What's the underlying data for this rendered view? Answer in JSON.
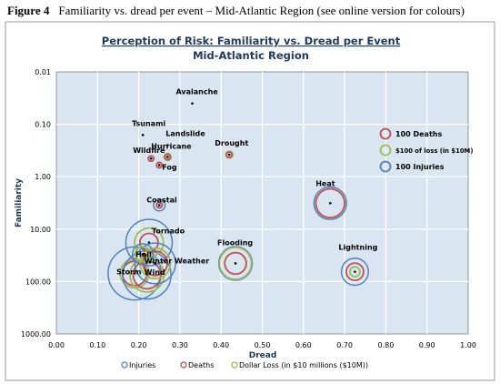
{
  "caption": {
    "figure_label": "Figure 4",
    "text": "Familiarity vs. dread per event – Mid-Atlantic Region (see online version for colours)"
  },
  "chart_data": {
    "type": "scatter",
    "title": "Perception of Risk: Familiarity vs. Dread per Event",
    "subtitle": "Mid-Atlantic Region",
    "xlabel": "Dread",
    "ylabel": "Familiarity",
    "xlim": [
      0,
      1
    ],
    "ylim": [
      0.01,
      1000
    ],
    "y_scale": "log",
    "y_reversed": true,
    "x_ticks": [
      "0.00",
      "0.10",
      "0.20",
      "0.30",
      "0.40",
      "0.50",
      "0.60",
      "0.70",
      "0.80",
      "0.90",
      "1.00"
    ],
    "y_ticks": [
      "0.01",
      "0.10",
      "1.00",
      "10.00",
      "100.00",
      "1000.00"
    ],
    "grid": true,
    "legend_inset": {
      "placement": "right",
      "items": [
        {
          "label": "100 Deaths",
          "color": "#c0504d"
        },
        {
          "label": "$100 of loss (in $10M)",
          "color": "#9bbb59"
        },
        {
          "label": "100 Injuries",
          "color": "#4f81bd"
        }
      ]
    },
    "legend_bottom": {
      "placement": "bottom",
      "items": [
        {
          "label": "Injuries",
          "color": "#4f81bd"
        },
        {
          "label": "Deaths",
          "color": "#c0504d"
        },
        {
          "label": "Dollar Loss (in $10 millions ($10M))",
          "color": "#9bbb59"
        }
      ]
    },
    "colors": {
      "injuries": "#4f81bd",
      "deaths": "#c0504d",
      "loss": "#9bbb59",
      "background": "#d9e6f2"
    },
    "events": [
      {
        "name": "Avalanche",
        "dread": 0.33,
        "familiarity": 0.04,
        "injuries": 0,
        "deaths": 0,
        "loss": 0
      },
      {
        "name": "Tsunami",
        "dread": 0.21,
        "familiarity": 0.16,
        "injuries": 0,
        "deaths": 0,
        "loss": 0
      },
      {
        "name": "Landslide",
        "dread": 0.27,
        "familiarity": 0.25,
        "injuries": 0,
        "deaths": 0,
        "loss": 0
      },
      {
        "name": "Wildfire",
        "dread": 0.23,
        "familiarity": 0.45,
        "injuries": 5,
        "deaths": 2,
        "loss": 2
      },
      {
        "name": "Hurricane",
        "dread": 0.27,
        "familiarity": 0.42,
        "injuries": 6,
        "deaths": 8,
        "loss": 15
      },
      {
        "name": "Drought",
        "dread": 0.42,
        "familiarity": 0.38,
        "injuries": 0,
        "deaths": 8,
        "loss": 15
      },
      {
        "name": "Fog",
        "dread": 0.25,
        "familiarity": 0.6,
        "injuries": 10,
        "deaths": 6,
        "loss": 0
      },
      {
        "name": "Coastal",
        "dread": 0.25,
        "familiarity": 3.5,
        "injuries": 40,
        "deaths": 8,
        "loss": 10
      },
      {
        "name": "Heat",
        "dread": 0.665,
        "familiarity": 3.2,
        "injuries": 320,
        "deaths": 250,
        "loss": 0
      },
      {
        "name": "Flooding",
        "dread": 0.435,
        "familiarity": 45,
        "injuries": 340,
        "deaths": 140,
        "loss": 310
      },
      {
        "name": "Lightning",
        "dread": 0.725,
        "familiarity": 65,
        "injuries": 220,
        "deaths": 90,
        "loss": 30
      },
      {
        "name": "Tornado",
        "dread": 0.225,
        "familiarity": 18,
        "injuries": 650,
        "deaths": 100,
        "loss": 250
      },
      {
        "name": "Hail",
        "dread": 0.21,
        "familiarity": 30,
        "injuries": 130,
        "deaths": 0,
        "loss": 70
      },
      {
        "name": "Winter Weather",
        "dread": 0.24,
        "familiarity": 45,
        "injuries": 500,
        "deaths": 180,
        "loss": 280
      },
      {
        "name": "Storm",
        "dread": 0.19,
        "familiarity": 70,
        "injuries": 850,
        "deaths": 180,
        "loss": 250
      },
      {
        "name": "Wind",
        "dread": 0.22,
        "familiarity": 75,
        "injuries": 700,
        "deaths": 230,
        "loss": 350
      }
    ]
  }
}
